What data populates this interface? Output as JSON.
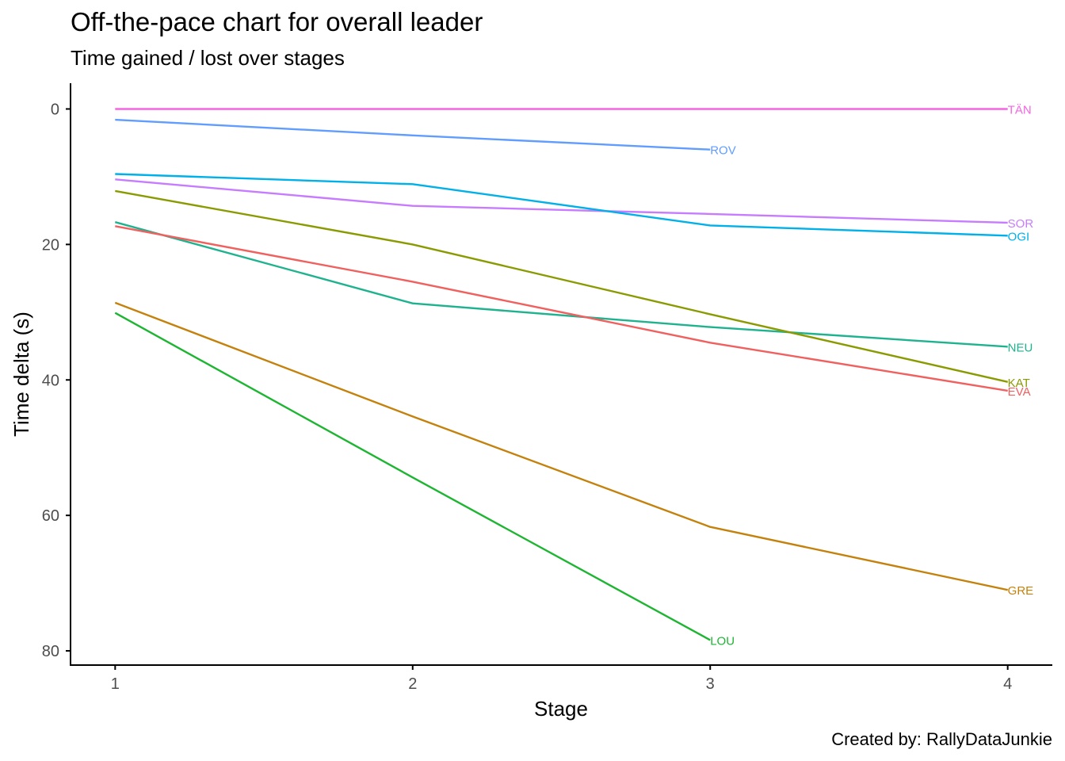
{
  "chart_data": {
    "type": "line",
    "title": "Off-the-pace chart for overall leader",
    "subtitle": "Time gained / lost over stages",
    "caption": "Created by: RallyDataJunkie",
    "xlabel": "Stage",
    "ylabel": "Time delta (s)",
    "x_ticks": [
      1,
      2,
      3,
      4
    ],
    "y_ticks": [
      0,
      20,
      40,
      60,
      80
    ],
    "xlim": [
      0.85,
      4.15
    ],
    "ylim": [
      -3.8,
      82.1
    ],
    "y_reversed": true,
    "grid": false,
    "legend": "none (direct labels at line ends)",
    "series": [
      {
        "name": "TÄN",
        "color": "#F564E3",
        "x": [
          1,
          2,
          3,
          4
        ],
        "y": [
          0,
          0,
          0,
          0
        ]
      },
      {
        "name": "ROV",
        "color": "#619CFF",
        "x": [
          1,
          2,
          3
        ],
        "y": [
          1.6,
          3.9,
          6.0
        ]
      },
      {
        "name": "SOR",
        "color": "#C77CFF",
        "x": [
          1,
          2,
          3,
          4
        ],
        "y": [
          10.4,
          14.3,
          15.5,
          16.8
        ]
      },
      {
        "name": "OGI",
        "color": "#00B0E8",
        "x": [
          1,
          2,
          3,
          4
        ],
        "y": [
          9.6,
          11.1,
          17.2,
          18.7
        ]
      },
      {
        "name": "NEU",
        "color": "#1FB28F",
        "x": [
          1,
          2,
          3,
          4
        ],
        "y": [
          16.7,
          28.7,
          32.2,
          35.1
        ]
      },
      {
        "name": "KAT",
        "color": "#8A9A00",
        "x": [
          1,
          2,
          3,
          4
        ],
        "y": [
          12.1,
          20.0,
          30.3,
          40.3
        ]
      },
      {
        "name": "EVA",
        "color": "#F0605E",
        "x": [
          1,
          2,
          3,
          4
        ],
        "y": [
          17.3,
          25.5,
          34.5,
          41.6
        ]
      },
      {
        "name": "GRE",
        "color": "#C4810C",
        "x": [
          1,
          2,
          3,
          4
        ],
        "y": [
          28.6,
          45.4,
          61.7,
          71.0
        ]
      },
      {
        "name": "LOU",
        "color": "#1DB531",
        "x": [
          1,
          2,
          3
        ],
        "y": [
          30.1,
          54.4,
          78.4
        ]
      }
    ]
  }
}
